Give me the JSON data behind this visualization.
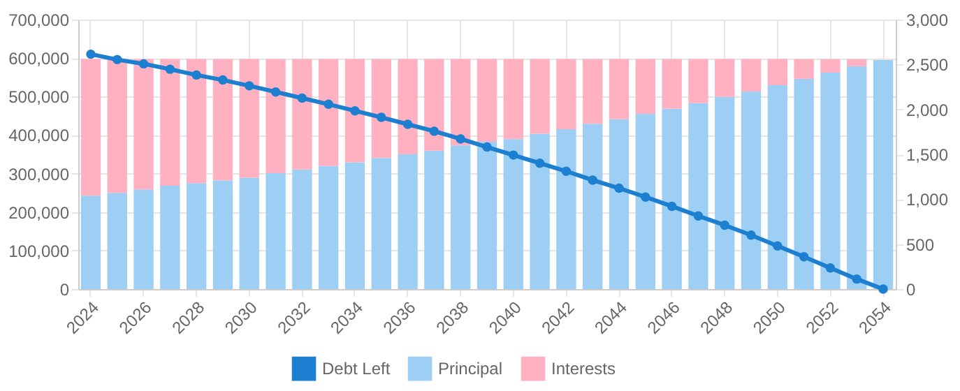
{
  "chart_data": {
    "type": "bar",
    "stacked": true,
    "categories": [
      "2024",
      null,
      "2026",
      null,
      "2028",
      null,
      "2030",
      null,
      "2032",
      null,
      "2034",
      null,
      "2036",
      null,
      "2038",
      null,
      "2040",
      null,
      "2042",
      null,
      "2044",
      null,
      "2046",
      null,
      "2048",
      null,
      "2050",
      null,
      "2052",
      null,
      "2054"
    ],
    "series": [
      {
        "name": "Debt Left",
        "type": "line",
        "color": "#1c7fd0",
        "values": [
          610000,
          596000,
          585000,
          571000,
          556000,
          543000,
          528000,
          512000,
          496000,
          480000,
          463000,
          446000,
          428000,
          410000,
          390000,
          369000,
          348000,
          327000,
          306000,
          283000,
          262000,
          239000,
          215000,
          190000,
          166000,
          140000,
          112000,
          84000,
          55000,
          26000,
          0
        ]
      },
      {
        "name": "Principal",
        "axis": "y2",
        "color": "#9dcff4",
        "values": [
          1040,
          1070,
          1110,
          1150,
          1180,
          1210,
          1240,
          1290,
          1330,
          1370,
          1410,
          1460,
          1500,
          1540,
          1600,
          1640,
          1670,
          1730,
          1780,
          1840,
          1890,
          1950,
          2010,
          2070,
          2140,
          2200,
          2270,
          2340,
          2410,
          2480,
          2550
        ]
      },
      {
        "name": "Interests",
        "axis": "y2",
        "color": "#ffb0c1",
        "values": [
          1520,
          1490,
          1450,
          1410,
          1380,
          1350,
          1320,
          1270,
          1230,
          1190,
          1150,
          1100,
          1060,
          1020,
          960,
          920,
          890,
          830,
          780,
          720,
          670,
          610,
          550,
          490,
          420,
          360,
          290,
          220,
          150,
          80,
          null
        ]
      }
    ],
    "ylim": [
      0,
      700000
    ],
    "yticks": [
      0,
      {
        "value": 100000,
        "label": "100,000"
      },
      {
        "value": 200000,
        "label": "200,000"
      },
      {
        "value": 300000,
        "label": "300,000"
      },
      {
        "value": 400000,
        "label": "400,000"
      },
      {
        "value": 500000,
        "label": "500,000"
      },
      {
        "value": 600000,
        "label": "600,000"
      },
      {
        "value": 700000,
        "label": "700,000"
      }
    ],
    "y2lim": [
      0,
      3000
    ],
    "y2ticks": [
      0,
      500,
      {
        "value": 1000,
        "label": "1,000"
      },
      {
        "value": 1500,
        "label": "1,500"
      },
      {
        "value": 2000,
        "label": "2,000"
      },
      {
        "value": 2500,
        "label": "2,500"
      },
      {
        "value": 3000,
        "label": "3,000"
      }
    ],
    "grid": true,
    "legend": "bottom",
    "marker": "circle",
    "line_style": "solid"
  }
}
